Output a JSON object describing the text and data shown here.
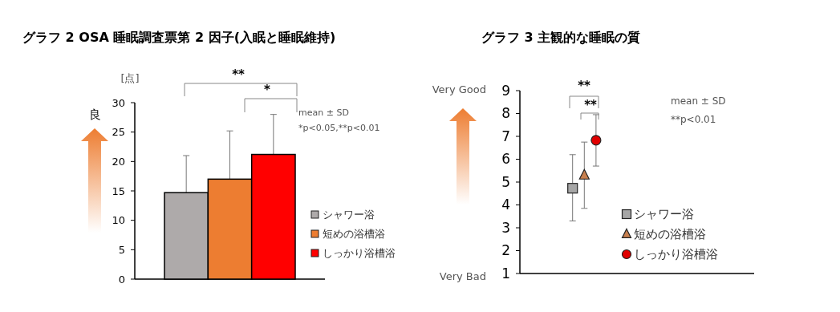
{
  "chart_data": [
    {
      "type": "bar",
      "title": "グラフ 2 OSA 睡眠調査票第 2 因子(入眠と睡眠維持)",
      "ylabel": "[点]",
      "categories": [
        null,
        null,
        null
      ],
      "legend": "right",
      "ylim": [
        0,
        30
      ],
      "yticks": [
        0,
        5,
        10,
        15,
        20,
        25,
        30
      ],
      "grid": false,
      "series": [
        {
          "name": "シャワー浴",
          "color": "#aeaaaa",
          "values": [
            14.7,
            null,
            null
          ],
          "errors": [
            [
              14.7,
              21.0
            ],
            null,
            null
          ]
        },
        {
          "name": "短めの浴槽浴",
          "color": "#ed7d31",
          "values": [
            null,
            17.0,
            null
          ],
          "errors": [
            null,
            [
              17.0,
              25.2
            ],
            null
          ]
        },
        {
          "name": "しっかり浴槽浴",
          "color": "#ff0000",
          "values": [
            null,
            null,
            21.2
          ],
          "errors": [
            null,
            null,
            [
              21.2,
              28.0
            ]
          ]
        }
      ],
      "annotations": [
        "良",
        "**",
        "*",
        "mean ± SD",
        "*p<0.05,**p<0.01"
      ]
    },
    {
      "type": "scatter",
      "title": "グラフ 3 主観的な睡眠の質",
      "categories": [
        null,
        null,
        null,
        null,
        null,
        null,
        null,
        null,
        null,
        null,
        null,
        null,
        null,
        null,
        null,
        null,
        null,
        null,
        null,
        null
      ],
      "legend": "bottom right",
      "ylim": [
        1,
        9
      ],
      "yticks": [
        1,
        2,
        3,
        4,
        5,
        6,
        7,
        8,
        9
      ],
      "grid": false,
      "series": [
        {
          "name": "シャワー浴",
          "color": "#a6a6a6",
          "marker": "square",
          "values": [
            null,
            null,
            null,
            null,
            4.73,
            null,
            null,
            null,
            null,
            null,
            null,
            null,
            null,
            null,
            null,
            null,
            null,
            null,
            null,
            null
          ],
          "errors": [
            null,
            null,
            null,
            null,
            [
              3.3,
              6.2
            ],
            null,
            null,
            null,
            null,
            null,
            null,
            null,
            null,
            null,
            null,
            null,
            null,
            null,
            null,
            null
          ]
        },
        {
          "name": "短めの浴槽浴",
          "color": "#c8804f",
          "marker": "triangle",
          "values": [
            null,
            null,
            null,
            null,
            null,
            5.3,
            null,
            null,
            null,
            null,
            null,
            null,
            null,
            null,
            null,
            null,
            null,
            null,
            null,
            null
          ],
          "errors": [
            null,
            null,
            null,
            null,
            null,
            [
              3.85,
              6.75
            ],
            null,
            null,
            null,
            null,
            null,
            null,
            null,
            null,
            null,
            null,
            null,
            null,
            null,
            null
          ]
        },
        {
          "name": "しっかり浴槽浴",
          "color": "#e00000",
          "marker": "circle",
          "values": [
            null,
            null,
            null,
            null,
            null,
            null,
            6.83,
            null,
            null,
            null,
            null,
            null,
            null,
            null,
            null,
            null,
            null,
            null,
            null,
            null
          ],
          "errors": [
            null,
            null,
            null,
            null,
            null,
            null,
            [
              5.7,
              7.95
            ],
            null,
            null,
            null,
            null,
            null,
            null,
            null,
            null,
            null,
            null,
            null,
            null,
            null
          ]
        }
      ],
      "annotations": [
        "Very Good",
        "Very Bad",
        "**",
        "**",
        "mean ± SD",
        "**p<0.01"
      ]
    }
  ]
}
